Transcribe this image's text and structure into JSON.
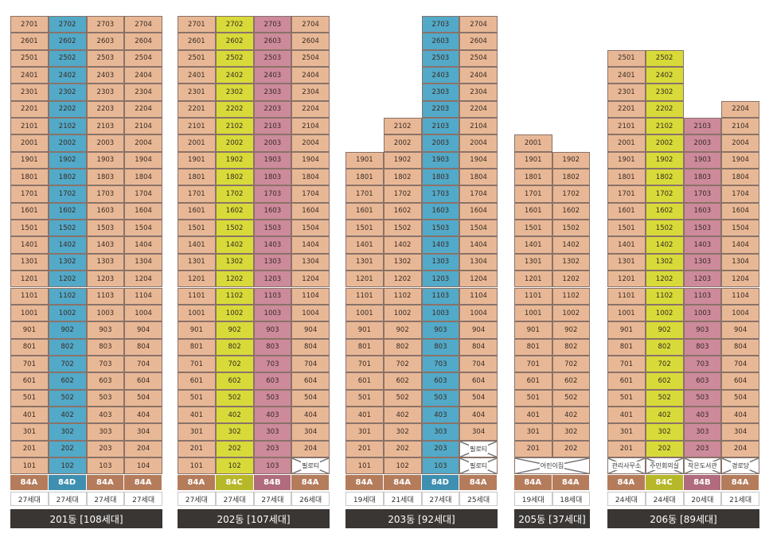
{
  "colors": {
    "salmon": "#e8b896",
    "blue": "#52a9c8",
    "yellow": "#d8da3a",
    "pink": "#cc8a9b",
    "type_default": "#b57c5c"
  },
  "buildings": [
    {
      "title": "201동 [108세대]",
      "lines": [
        {
          "color": "salmon",
          "type": "84A",
          "count": "27세대",
          "top_floor": 27,
          "special": []
        },
        {
          "color": "blue",
          "type": "84D",
          "count": "27세대",
          "top_floor": 27,
          "special": []
        },
        {
          "color": "salmon",
          "type": "84A",
          "count": "27세대",
          "top_floor": 27,
          "special": []
        },
        {
          "color": "salmon",
          "type": "84A",
          "count": "27세대",
          "top_floor": 27,
          "special": []
        }
      ]
    },
    {
      "title": "202동 [107세대]",
      "lines": [
        {
          "color": "salmon",
          "type": "84A",
          "count": "27세대",
          "top_floor": 27,
          "special": []
        },
        {
          "color": "yellow",
          "type": "84C",
          "count": "27세대",
          "top_floor": 27,
          "special": []
        },
        {
          "color": "pink",
          "type": "84B",
          "count": "27세대",
          "top_floor": 27,
          "special": []
        },
        {
          "color": "salmon",
          "type": "84A",
          "count": "26세대",
          "top_floor": 27,
          "special": [
            {
              "floor": 1,
              "label": "필로티"
            }
          ]
        }
      ]
    },
    {
      "title": "203동 [92세대]",
      "lines": [
        {
          "color": "salmon",
          "type": "84A",
          "count": "19세대",
          "top_floor": 19,
          "special": []
        },
        {
          "color": "salmon",
          "type": "84A",
          "count": "21세대",
          "top_floor": 21,
          "special": []
        },
        {
          "color": "blue",
          "type": "84D",
          "count": "27세대",
          "top_floor": 27,
          "special": []
        },
        {
          "color": "salmon",
          "type": "84A",
          "count": "25세대",
          "top_floor": 27,
          "special": [
            {
              "floor": 1,
              "label": "필로티"
            },
            {
              "floor": 2,
              "label": "필로티"
            }
          ]
        }
      ]
    },
    {
      "title": "205동 [37세대]",
      "lines": [
        {
          "color": "salmon",
          "type": "84A",
          "count": "19세대",
          "top_floor": 20,
          "special": [
            {
              "floor": 1,
              "label": "어린이집",
              "span": 2
            }
          ]
        },
        {
          "color": "salmon",
          "type": "84A",
          "count": "18세대",
          "top_floor": 19,
          "special": [
            {
              "floor": 1,
              "label": "",
              "skip": true
            }
          ]
        }
      ]
    },
    {
      "title": "206동 [89세대]",
      "lines": [
        {
          "color": "salmon",
          "type": "84A",
          "count": "24세대",
          "top_floor": 25,
          "special": [
            {
              "floor": 1,
              "label": "관리사무소"
            }
          ]
        },
        {
          "color": "yellow",
          "type": "84C",
          "count": "24세대",
          "top_floor": 25,
          "special": [
            {
              "floor": 1,
              "label": "주민회의실"
            }
          ]
        },
        {
          "color": "pink",
          "type": "84B",
          "count": "20세대",
          "top_floor": 21,
          "special": [
            {
              "floor": 1,
              "label": "작은도서관"
            }
          ]
        },
        {
          "color": "salmon",
          "type": "84A",
          "count": "21세대",
          "top_floor": 22,
          "special": [
            {
              "floor": 1,
              "label": "경로당"
            }
          ]
        }
      ]
    }
  ]
}
